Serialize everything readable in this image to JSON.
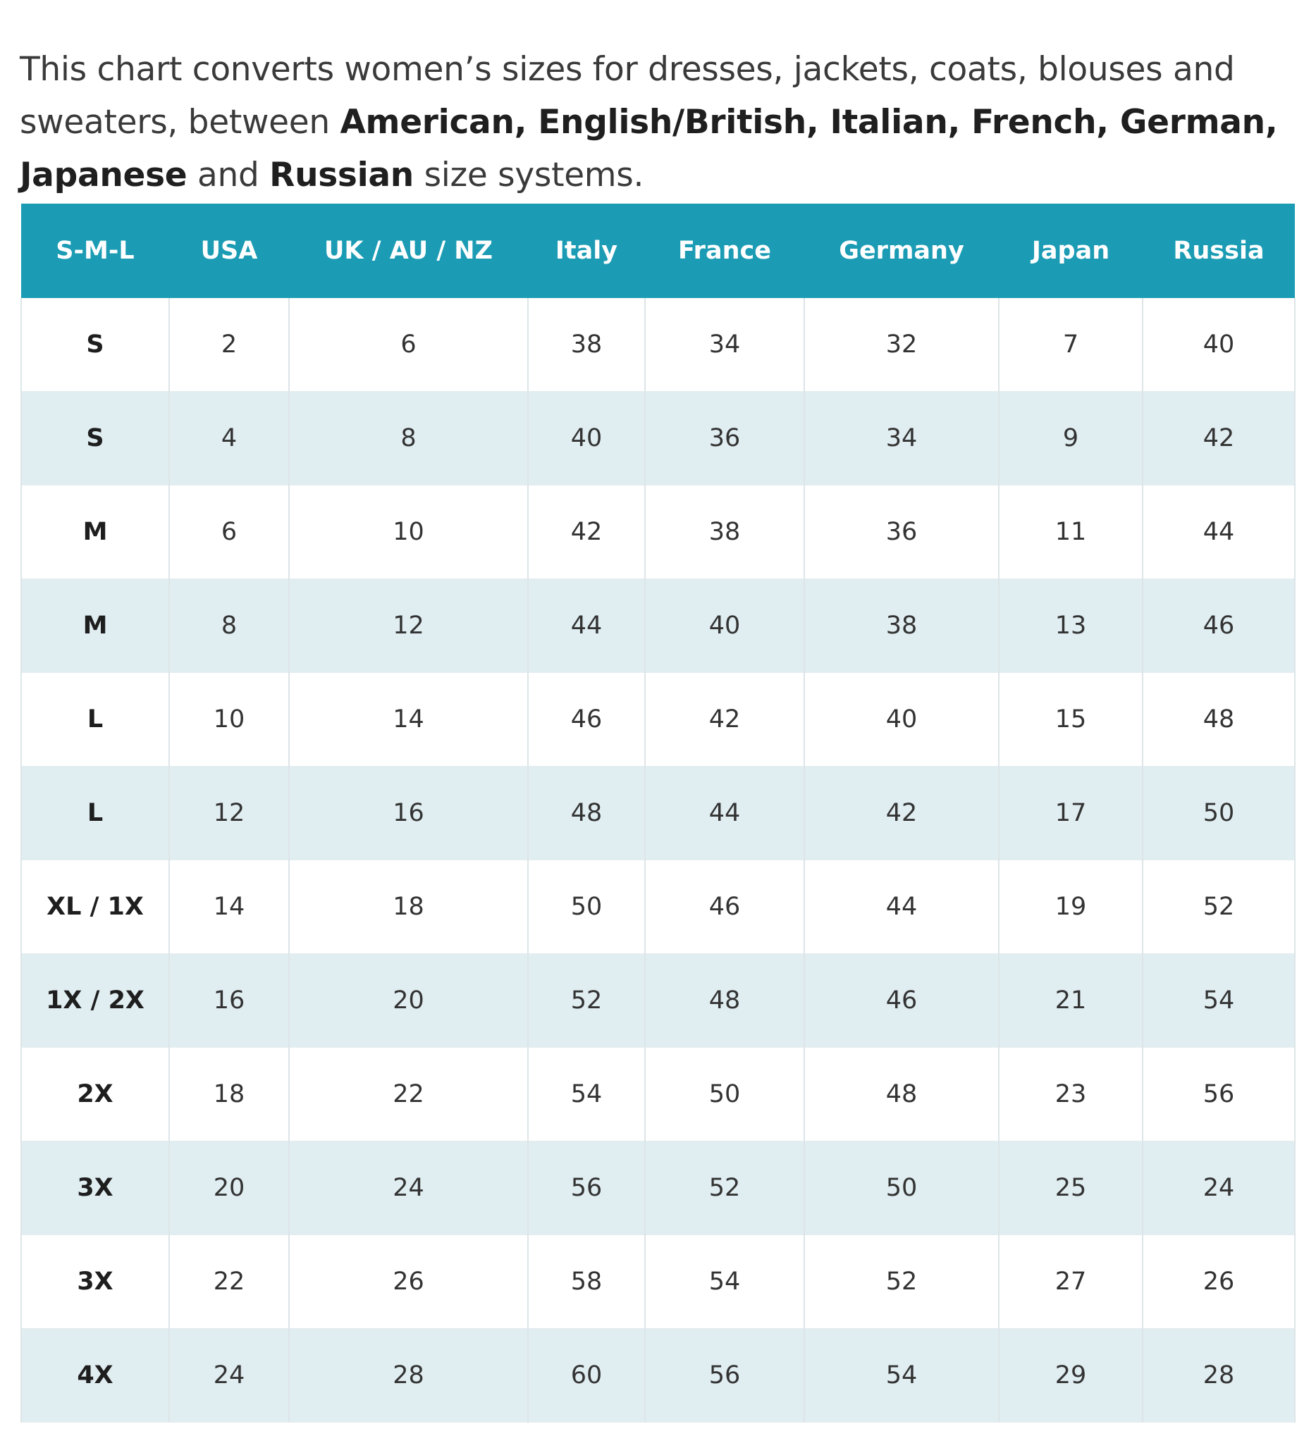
{
  "intro": {
    "text_1": "This chart converts women’s sizes for dresses, jackets, coats, blouses and sweaters, between ",
    "bold_1": "American, English/British, Italian, French, German, Japanese",
    "text_2": " and ",
    "bold_2": "Russian",
    "text_3": " size systems."
  },
  "colors": {
    "header_bg": "#1b9cb4",
    "stripe_bg": "#e0edf1"
  },
  "table": {
    "headers": [
      "S-M-L",
      "USA",
      "UK / AU / NZ",
      "Italy",
      "France",
      "Germany",
      "Japan",
      "Russia"
    ],
    "rows": [
      [
        "S",
        "2",
        "6",
        "38",
        "34",
        "32",
        "7",
        "40"
      ],
      [
        "S",
        "4",
        "8",
        "40",
        "36",
        "34",
        "9",
        "42"
      ],
      [
        "M",
        "6",
        "10",
        "42",
        "38",
        "36",
        "11",
        "44"
      ],
      [
        "M",
        "8",
        "12",
        "44",
        "40",
        "38",
        "13",
        "46"
      ],
      [
        "L",
        "10",
        "14",
        "46",
        "42",
        "40",
        "15",
        "48"
      ],
      [
        "L",
        "12",
        "16",
        "48",
        "44",
        "42",
        "17",
        "50"
      ],
      [
        "XL / 1X",
        "14",
        "18",
        "50",
        "46",
        "44",
        "19",
        "52"
      ],
      [
        "1X / 2X",
        "16",
        "20",
        "52",
        "48",
        "46",
        "21",
        "54"
      ],
      [
        "2X",
        "18",
        "22",
        "54",
        "50",
        "48",
        "23",
        "56"
      ],
      [
        "3X",
        "20",
        "24",
        "56",
        "52",
        "50",
        "25",
        "24"
      ],
      [
        "3X",
        "22",
        "26",
        "58",
        "54",
        "52",
        "27",
        "26"
      ],
      [
        "4X",
        "24",
        "28",
        "60",
        "56",
        "54",
        "29",
        "28"
      ]
    ]
  }
}
